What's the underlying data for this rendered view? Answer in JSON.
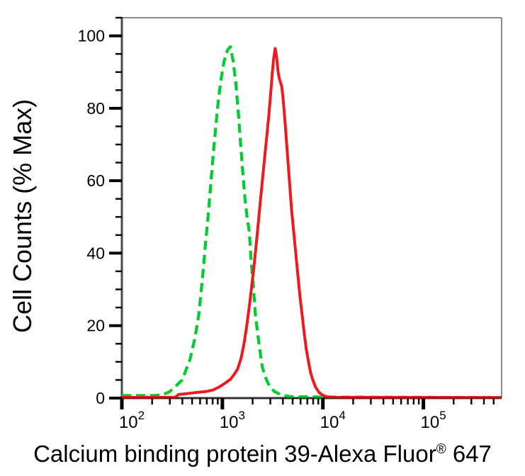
{
  "chart_data": {
    "type": "line",
    "subtype": "flow-cytometry-histogram-overlay",
    "title": "",
    "ylabel": "Cell Counts (% Max)",
    "xlabel_main": "Calcium binding protein 39-Alexa Fluor",
    "xlabel_registered": "®",
    "xlabel_suffix": " 647",
    "x_scale": "log",
    "x_range": [
      100,
      600000
    ],
    "y_range": [
      0,
      105
    ],
    "y_major_ticks": [
      0,
      20,
      40,
      60,
      80,
      100
    ],
    "y_minor_tick_step": 5,
    "x_major_ticks": [
      100,
      1000,
      10000,
      100000
    ],
    "x_major_tick_labels": [
      {
        "base": "10",
        "exponent": "2"
      },
      {
        "base": "10",
        "exponent": "3"
      },
      {
        "base": "10",
        "exponent": "4"
      },
      {
        "base": "10",
        "exponent": "5"
      }
    ],
    "x_minor_multipliers": [
      2,
      3,
      4,
      5,
      6,
      7,
      8,
      9
    ],
    "grid": "off",
    "legend": "none",
    "axis_color_main": "#4a4a4a",
    "axis_color_frame": "#8c8c8c",
    "tick_color": "#000000",
    "series": [
      {
        "name": "green_dashed_curve",
        "style": "dashed",
        "color": "#00cd2d",
        "stroke_width": 4.2,
        "dash_pattern": "13 7",
        "points": [
          [
            100,
            0.7
          ],
          [
            210,
            0.7
          ],
          [
            260,
            1.0
          ],
          [
            300,
            1.8
          ],
          [
            328,
            2.7
          ],
          [
            398,
            5.0
          ],
          [
            476,
            10.6
          ],
          [
            533,
            16.6
          ],
          [
            579,
            22.5
          ],
          [
            608,
            28
          ],
          [
            638,
            34
          ],
          [
            681,
            43
          ],
          [
            715,
            49
          ],
          [
            760,
            58
          ],
          [
            810,
            67
          ],
          [
            860,
            75
          ],
          [
            910,
            82
          ],
          [
            970,
            88
          ],
          [
            1040,
            93
          ],
          [
            1120,
            96
          ],
          [
            1200,
            97
          ],
          [
            1280,
            93
          ],
          [
            1360,
            87
          ],
          [
            1440,
            79
          ],
          [
            1520,
            70
          ],
          [
            1600,
            62
          ],
          [
            1680,
            55
          ],
          [
            1760,
            50
          ],
          [
            1850,
            46
          ],
          [
            1930,
            38
          ],
          [
            2030,
            31
          ],
          [
            2130,
            23
          ],
          [
            2310,
            15
          ],
          [
            2500,
            8.5
          ],
          [
            2700,
            5.5
          ],
          [
            2950,
            3.2
          ],
          [
            3300,
            1.8
          ],
          [
            3900,
            0.8
          ],
          [
            4800,
            0.4
          ],
          [
            11000,
            0.3
          ],
          [
            600000,
            0.15
          ]
        ]
      },
      {
        "name": "red_solid_curve",
        "style": "solid",
        "color": "#ee1a20",
        "stroke_width": 4,
        "dash_pattern": null,
        "points": [
          [
            100,
            0.2
          ],
          [
            340,
            0.25
          ],
          [
            367,
            1.0
          ],
          [
            432,
            1.2
          ],
          [
            534,
            1.5
          ],
          [
            681,
            1.8
          ],
          [
            805,
            2.2
          ],
          [
            948,
            3.2
          ],
          [
            1074,
            4.2
          ],
          [
            1203,
            5.2
          ],
          [
            1306,
            6.5
          ],
          [
            1416,
            8
          ],
          [
            1535,
            11
          ],
          [
            1641,
            15
          ],
          [
            1750,
            20
          ],
          [
            1866,
            26
          ],
          [
            1959,
            31
          ],
          [
            2057,
            36
          ],
          [
            2162,
            42
          ],
          [
            2270,
            48
          ],
          [
            2382,
            54
          ],
          [
            2500,
            60
          ],
          [
            2625,
            66
          ],
          [
            2761,
            72
          ],
          [
            2897,
            78
          ],
          [
            3041,
            85
          ],
          [
            3142,
            90
          ],
          [
            3245,
            94
          ],
          [
            3350,
            96.5
          ],
          [
            3467,
            94
          ],
          [
            3581,
            90
          ],
          [
            3699,
            88
          ],
          [
            3900,
            86
          ],
          [
            4009,
            83
          ],
          [
            4207,
            76
          ],
          [
            4421,
            68
          ],
          [
            4645,
            60
          ],
          [
            4875,
            52
          ],
          [
            5117,
            46
          ],
          [
            5370,
            40
          ],
          [
            5636,
            34
          ],
          [
            5915,
            28
          ],
          [
            6209,
            23
          ],
          [
            6516,
            18
          ],
          [
            6839,
            13.5
          ],
          [
            7192,
            10
          ],
          [
            7551,
            7
          ],
          [
            7943,
            5
          ],
          [
            8472,
            3
          ],
          [
            9183,
            1.5
          ],
          [
            9977,
            0.8
          ],
          [
            10815,
            0.4
          ],
          [
            12700,
            0.2
          ],
          [
            600000,
            0.15
          ]
        ]
      }
    ]
  }
}
